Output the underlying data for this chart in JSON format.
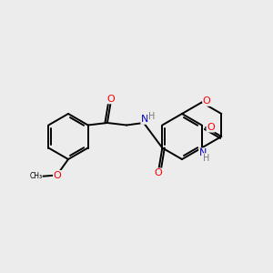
{
  "background_color": "#ececec",
  "bond_color": "#000000",
  "bond_width": 1.4,
  "atom_colors": {
    "O": "#ff0000",
    "N": "#0000bb",
    "H": "#777777",
    "C": "#000000"
  },
  "font_size": 7.0,
  "figsize": [
    3.0,
    3.0
  ],
  "dpi": 100,
  "xlim": [
    0,
    12
  ],
  "ylim": [
    0,
    10
  ]
}
